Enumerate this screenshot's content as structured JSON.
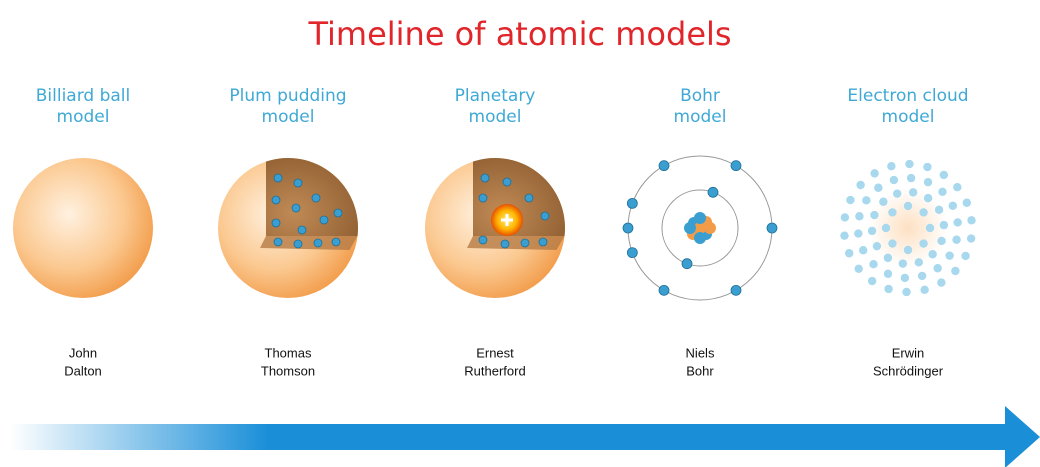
{
  "header": {
    "title": "Timeline of atomic models"
  },
  "models": [
    {
      "name": [
        "Billiard ball",
        "model"
      ],
      "scientist": [
        "John",
        "Dalton"
      ]
    },
    {
      "name": [
        "Plum pudding",
        "model"
      ],
      "scientist": [
        "Thomas",
        "Thomson"
      ]
    },
    {
      "name": [
        "Planetary",
        "model"
      ],
      "scientist": [
        "Ernest",
        "Rutherford"
      ]
    },
    {
      "name": [
        "Bohr",
        "model"
      ],
      "scientist": [
        "Niels",
        "Bohr"
      ]
    },
    {
      "name": [
        "Electron cloud",
        "model"
      ],
      "scientist": [
        "Erwin",
        "Schrödinger"
      ]
    }
  ]
}
